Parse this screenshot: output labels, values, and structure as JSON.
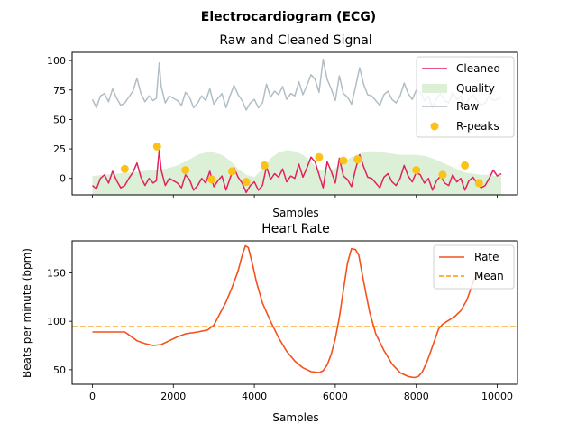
{
  "suptitle": "Electrocardiogram (ECG)",
  "colors": {
    "cleaned": "#e2215e",
    "raw": "#b0bec5",
    "quality": "#dcf0d8",
    "rpeaks": "#fbc31a",
    "rate": "#f4511e",
    "mean": "#ff9800"
  },
  "chart_data": [
    {
      "type": "line",
      "title": "Raw and Cleaned Signal",
      "xlabel": "Samples",
      "ylabel": "",
      "xlim": [
        -500,
        10500
      ],
      "ylim": [
        -14,
        107
      ],
      "xticks": [
        0,
        2000,
        4000,
        6000,
        8000,
        10000
      ],
      "x_tick_labels_shown": false,
      "yticks": [
        0,
        25,
        50,
        75,
        100
      ],
      "grid": false,
      "legend": {
        "position": "top-right",
        "entries": [
          "Cleaned",
          "Quality",
          "Raw",
          "R-peaks"
        ]
      },
      "series": [
        {
          "name": "Raw",
          "x": [
            0,
            100,
            200,
            300,
            400,
            500,
            600,
            700,
            800,
            900,
            1000,
            1100,
            1200,
            1300,
            1400,
            1500,
            1580,
            1650,
            1700,
            1800,
            1900,
            2000,
            2100,
            2200,
            2300,
            2400,
            2500,
            2600,
            2700,
            2800,
            2900,
            3000,
            3100,
            3200,
            3300,
            3400,
            3500,
            3600,
            3700,
            3800,
            3900,
            4000,
            4100,
            4200,
            4300,
            4400,
            4500,
            4600,
            4700,
            4800,
            4900,
            5000,
            5100,
            5200,
            5300,
            5400,
            5500,
            5600,
            5700,
            5800,
            5900,
            6000,
            6100,
            6200,
            6300,
            6400,
            6500,
            6600,
            6700,
            6800,
            6900,
            7000,
            7100,
            7200,
            7300,
            7400,
            7500,
            7600,
            7700,
            7800,
            7900,
            8000,
            8100,
            8200,
            8300,
            8400,
            8500,
            8600,
            8700,
            8800,
            8900,
            9000,
            9100,
            9200,
            9300,
            9400,
            9500,
            9600,
            9700,
            9800,
            9900,
            10000,
            10100
          ],
          "y": [
            67,
            60,
            70,
            72,
            65,
            76,
            68,
            62,
            64,
            69,
            74,
            85,
            72,
            65,
            70,
            66,
            68,
            98,
            78,
            64,
            70,
            68,
            66,
            62,
            73,
            69,
            60,
            64,
            70,
            66,
            76,
            63,
            68,
            72,
            60,
            70,
            79,
            71,
            66,
            58,
            64,
            67,
            60,
            64,
            80,
            69,
            74,
            71,
            78,
            67,
            72,
            70,
            82,
            71,
            79,
            88,
            84,
            73,
            101,
            84,
            76,
            66,
            87,
            72,
            69,
            63,
            78,
            94,
            80,
            71,
            70,
            66,
            62,
            71,
            74,
            67,
            64,
            70,
            81,
            72,
            67,
            75,
            73,
            66,
            70,
            60,
            68,
            72,
            66,
            64,
            73,
            67,
            70,
            60,
            68,
            71,
            66,
            62,
            64,
            70,
            66,
            67,
            69
          ]
        },
        {
          "name": "Cleaned",
          "x": [
            0,
            100,
            200,
            300,
            400,
            500,
            600,
            700,
            800,
            900,
            1000,
            1100,
            1200,
            1300,
            1400,
            1500,
            1580,
            1650,
            1700,
            1800,
            1900,
            2000,
            2100,
            2200,
            2300,
            2400,
            2500,
            2600,
            2700,
            2800,
            2900,
            3000,
            3100,
            3200,
            3300,
            3400,
            3500,
            3600,
            3700,
            3800,
            3900,
            4000,
            4100,
            4200,
            4300,
            4400,
            4500,
            4600,
            4700,
            4800,
            4900,
            5000,
            5100,
            5200,
            5300,
            5400,
            5500,
            5600,
            5700,
            5800,
            5900,
            6000,
            6100,
            6200,
            6300,
            6400,
            6500,
            6600,
            6700,
            6800,
            6900,
            7000,
            7100,
            7200,
            7300,
            7400,
            7500,
            7600,
            7700,
            7800,
            7900,
            8000,
            8100,
            8200,
            8300,
            8400,
            8500,
            8600,
            8700,
            8800,
            8900,
            9000,
            9100,
            9200,
            9300,
            9400,
            9500,
            9600,
            9700,
            9800,
            9900,
            10000,
            10100
          ],
          "y": [
            -6,
            -9,
            0,
            3,
            -4,
            6,
            -2,
            -8,
            -6,
            0,
            5,
            13,
            1,
            -6,
            0,
            -4,
            -2,
            24,
            7,
            -6,
            0,
            -2,
            -4,
            -8,
            3,
            -1,
            -10,
            -6,
            0,
            -4,
            6,
            -7,
            -2,
            2,
            -10,
            0,
            9,
            1,
            -4,
            -12,
            -6,
            -3,
            -10,
            -6,
            10,
            -1,
            4,
            1,
            8,
            -3,
            2,
            0,
            12,
            1,
            9,
            18,
            14,
            3,
            -8,
            14,
            6,
            -4,
            17,
            2,
            -1,
            -7,
            8,
            20,
            10,
            1,
            0,
            -4,
            -8,
            1,
            4,
            -3,
            -6,
            0,
            11,
            2,
            -3,
            5,
            3,
            -4,
            0,
            -10,
            -2,
            2,
            -4,
            -6,
            3,
            -3,
            0,
            -10,
            -2,
            1,
            -4,
            -8,
            -6,
            0,
            7,
            2,
            4
          ]
        },
        {
          "name": "Quality",
          "x": [
            0,
            300,
            600,
            900,
            1200,
            1500,
            1800,
            2100,
            2400,
            2600,
            2800,
            3000,
            3200,
            3400,
            3600,
            3800,
            4000,
            4200,
            4400,
            4600,
            4800,
            5000,
            5200,
            5400,
            5600,
            5800,
            6000,
            6200,
            6400,
            6600,
            6800,
            7000,
            7200,
            7400,
            7600,
            7800,
            8000,
            8200,
            8400,
            8600,
            8800,
            9000,
            9200,
            9400,
            9600,
            9800,
            10000,
            10100
          ],
          "y": [
            2,
            3,
            4,
            5,
            6,
            7,
            8,
            11,
            16,
            20,
            22,
            22,
            20,
            15,
            8,
            3,
            1,
            8,
            17,
            22,
            24,
            23,
            20,
            14,
            7,
            6,
            9,
            14,
            18,
            21,
            23,
            23,
            22,
            21,
            20,
            20,
            20,
            19,
            17,
            14,
            11,
            8,
            5,
            4,
            3,
            3,
            2,
            2
          ]
        },
        {
          "name": "R-peaks",
          "x": [
            800,
            1600,
            2300,
            2950,
            3450,
            3800,
            4250,
            5600,
            6200,
            6550,
            8000,
            8650,
            9200,
            9550
          ],
          "y": [
            8,
            27,
            7,
            -1,
            6,
            -3,
            11,
            18,
            15,
            16,
            7,
            3,
            11,
            -4
          ]
        }
      ]
    },
    {
      "type": "line",
      "title": "Heart Rate",
      "xlabel": "Samples",
      "ylabel": "Beats per minute (bpm)",
      "xlim": [
        -500,
        10500
      ],
      "ylim": [
        35,
        183
      ],
      "xticks": [
        0,
        2000,
        4000,
        6000,
        8000,
        10000
      ],
      "yticks": [
        50,
        100,
        150
      ],
      "grid": false,
      "legend": {
        "position": "top-right",
        "entries": [
          "Rate",
          "Mean"
        ]
      },
      "series": [
        {
          "name": "Rate",
          "x": [
            0,
            300,
            600,
            800,
            900,
            1100,
            1300,
            1500,
            1700,
            1900,
            2100,
            2300,
            2600,
            2850,
            3000,
            3150,
            3300,
            3450,
            3600,
            3700,
            3780,
            3850,
            3950,
            4050,
            4200,
            4400,
            4600,
            4800,
            5000,
            5200,
            5400,
            5600,
            5700,
            5800,
            5900,
            6000,
            6100,
            6200,
            6300,
            6400,
            6500,
            6580,
            6650,
            6750,
            6850,
            7000,
            7200,
            7400,
            7600,
            7800,
            7950,
            8050,
            8150,
            8250,
            8350,
            8450,
            8550,
            8650,
            8800,
            8950,
            9100,
            9250,
            9400,
            9500
          ],
          "y": [
            89,
            89,
            89,
            89,
            86,
            80,
            77,
            75,
            76,
            80,
            84,
            87,
            89,
            91,
            96,
            108,
            120,
            135,
            152,
            168,
            178,
            176,
            160,
            141,
            119,
            100,
            83,
            69,
            59,
            52,
            48,
            47,
            49,
            55,
            66,
            82,
            104,
            132,
            160,
            175,
            174,
            168,
            152,
            130,
            109,
            87,
            70,
            56,
            47,
            43,
            42,
            43,
            48,
            57,
            68,
            80,
            92,
            97,
            101,
            105,
            111,
            122,
            140,
            150
          ]
        },
        {
          "name": "Mean",
          "x": [
            -500,
            10500
          ],
          "y": [
            94.5,
            94.5
          ]
        }
      ]
    }
  ]
}
